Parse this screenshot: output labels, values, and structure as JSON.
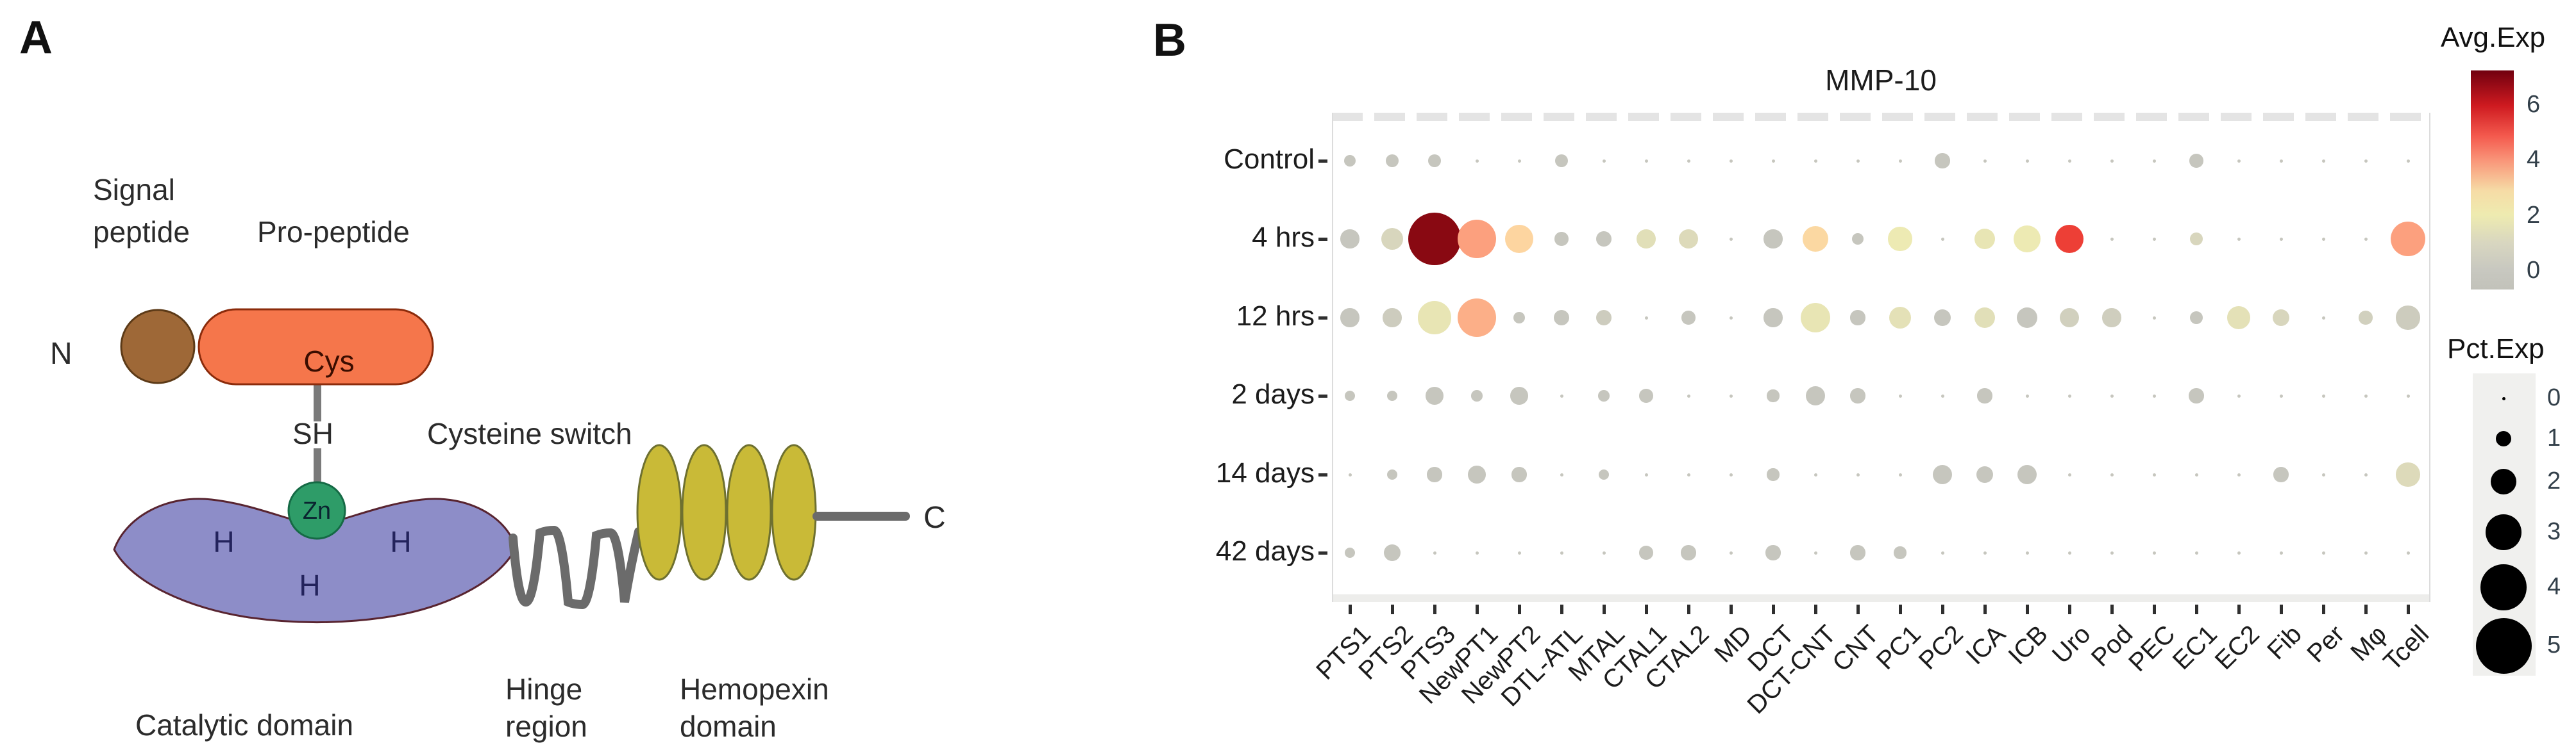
{
  "figure": {
    "panel_a": {
      "panel_label": "A",
      "labels": {
        "signal_line1": "Signal",
        "signal_line2": "peptide",
        "pro_peptide": "Pro-peptide",
        "n_terminus": "N",
        "cys": "Cys",
        "sh": "SH",
        "cysteine_switch": "Cysteine switch",
        "zn": "Zn",
        "h1": "H",
        "h2": "H",
        "h3": "H",
        "catalytic_domain": "Catalytic domain",
        "hinge_line1": "Hinge",
        "hinge_line2": "region",
        "hemopexin_line1": "Hemopexin",
        "hemopexin_line2": "domain",
        "c_terminus": "C"
      },
      "colors": {
        "signal_brown": "#9e6837",
        "signal_brown_border": "#5c3a17",
        "propeptide_orange": "#f5764b",
        "propeptide_border": "#8b2b0b",
        "catalytic_purple": "#8d8dc8",
        "catalytic_border": "#582430",
        "zn_green": "#2e9c68",
        "zn_border": "#156a45",
        "hemopexin_olive": "#c9ba37",
        "hemopexin_border": "#6e7030",
        "connector_gray": "#6b6b6b"
      }
    },
    "panel_b": {
      "panel_label": "B",
      "title": "MMP-10",
      "chart_data": {
        "type": "scatter",
        "subtype": "dot-plot",
        "title": "MMP-10",
        "rows": [
          "Control",
          "4 hrs",
          "12 hrs",
          "2 days",
          "14 days",
          "42 days"
        ],
        "columns": [
          "PTS1",
          "PTS2",
          "PTS3",
          "NewPT1",
          "NewPT2",
          "DTL-ATL",
          "MTAL",
          "CTAL1",
          "CTAL2",
          "MD",
          "DCT",
          "DCT-CNT",
          "CNT",
          "PC1",
          "PC2",
          "ICA",
          "ICB",
          "Uro",
          "Pod",
          "PEC",
          "EC1",
          "EC2",
          "Fib",
          "Per",
          "Mφ",
          "Tcell"
        ],
        "pct_exp": [
          [
            0.6,
            0.7,
            0.7,
            0.2,
            0.2,
            0.7,
            0.2,
            0.2,
            0.2,
            0.2,
            0.3,
            0.3,
            0.2,
            0.2,
            0.9,
            0.2,
            0.2,
            0.2,
            0.2,
            0.2,
            0.8,
            0.2,
            0.2,
            0.2,
            0.2,
            0.2
          ],
          [
            1.3,
            1.6,
            4.7,
            3.3,
            2.3,
            0.8,
            1.0,
            1.4,
            1.4,
            0.2,
            1.3,
            2.0,
            0.6,
            1.8,
            0.2,
            1.5,
            2.1,
            2.3,
            0.2,
            0.2,
            0.7,
            0.2,
            0.2,
            0.2,
            0.2,
            2.9
          ],
          [
            1.3,
            1.3,
            2.7,
            3.3,
            0.6,
            1.0,
            1.0,
            0.2,
            0.8,
            0.2,
            1.3,
            2.4,
            0.9,
            1.6,
            1.1,
            1.5,
            1.5,
            1.4,
            1.3,
            0.2,
            0.7,
            1.7,
            1.1,
            0.2,
            0.8,
            1.8
          ],
          [
            0.5,
            0.5,
            1.2,
            0.55,
            1.2,
            0.15,
            0.55,
            0.8,
            0.15,
            0.15,
            0.65,
            1.4,
            0.9,
            0.15,
            0.15,
            0.9,
            0.2,
            0.15,
            0.15,
            0.15,
            0.9,
            0.15,
            0.15,
            0.15,
            0.15,
            0.2
          ],
          [
            0.15,
            0.5,
            0.9,
            1.2,
            0.9,
            0.15,
            0.5,
            0.2,
            0.2,
            0.15,
            0.65,
            0.2,
            0.2,
            0.2,
            1.4,
            1.1,
            1.4,
            0.2,
            0.2,
            0.2,
            0.2,
            0.2,
            0.9,
            0.2,
            0.2,
            1.8
          ],
          [
            0.5,
            1.1,
            0.2,
            0.2,
            0.2,
            0.2,
            0.15,
            0.8,
            0.9,
            0.2,
            0.9,
            0.15,
            0.9,
            0.65,
            0.2,
            0.2,
            0.2,
            0.2,
            0.2,
            0.2,
            0.2,
            0.2,
            0.2,
            0.2,
            0.2,
            0.2
          ]
        ],
        "avg_exp": [
          [
            0,
            0,
            0,
            0,
            0,
            0,
            0,
            0,
            0,
            0,
            0,
            0,
            0,
            0,
            0,
            0,
            0,
            0,
            0,
            0,
            0,
            0,
            0,
            0,
            0,
            0
          ],
          [
            0,
            0.8,
            6.2,
            3.5,
            2.8,
            0,
            0,
            1.2,
            1.0,
            0,
            0,
            2.7,
            0,
            1.8,
            0,
            1.5,
            1.8,
            4.8,
            0,
            0,
            0.8,
            0,
            0,
            0,
            0,
            3.5
          ],
          [
            0,
            0.3,
            1.5,
            3.3,
            0,
            0,
            0.3,
            0,
            0,
            0,
            0,
            1.5,
            0,
            1.3,
            0,
            1.2,
            0,
            0.5,
            0.4,
            0,
            0,
            1.3,
            0.8,
            0,
            0.5,
            0.3
          ],
          [
            0,
            0,
            0,
            0,
            0,
            0,
            0,
            0,
            0,
            0,
            0,
            0,
            0,
            0,
            0,
            0,
            0,
            0,
            0,
            0,
            0,
            0,
            0,
            0,
            0,
            0
          ],
          [
            0,
            0,
            0,
            0,
            0,
            0,
            0,
            0,
            0,
            0,
            0,
            0,
            0,
            0,
            0,
            0,
            0,
            0,
            0,
            0,
            0,
            0,
            0,
            0,
            0,
            1.0
          ],
          [
            0,
            0,
            0,
            0,
            0,
            0,
            0,
            0,
            0,
            0,
            0,
            0,
            0,
            0,
            0,
            0,
            0,
            0,
            0,
            0,
            0,
            0,
            0,
            0,
            0,
            0
          ]
        ],
        "legend": {
          "avg_title": "Avg.Exp",
          "avg_ticks": [
            6,
            4,
            2,
            0
          ],
          "pct_title": "Pct.Exp",
          "pct_sizes": [
            0,
            1,
            2,
            3,
            4,
            5
          ]
        },
        "color_scale": {
          "gray_low": "#c6c6be",
          "pale_yellow": "#f0edb2",
          "peach": "#fdd0a2",
          "salmon": "#fc9272",
          "red": "#e93130",
          "dark_red": "#67000d"
        },
        "grid": false,
        "legend_position": "right"
      }
    }
  }
}
